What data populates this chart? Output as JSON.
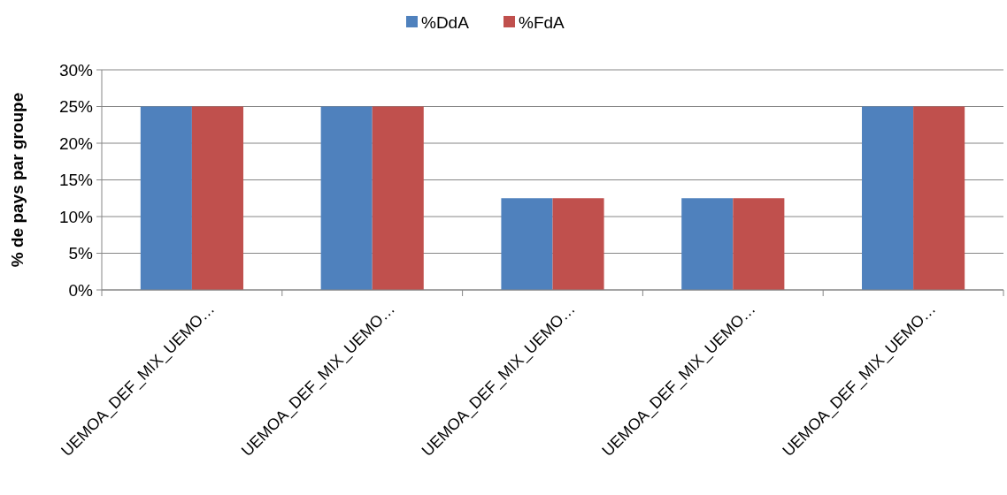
{
  "chart_data": {
    "type": "bar",
    "ylabel": "% de pays par groupe",
    "categories": [
      "UEMOA_DEF_MIX_UEMO…",
      "UEMOA_DEF_MIX_UEMO…",
      "UEMOA_DEF_MIX_UEMO…",
      "UEMOA_DEF_MIX_UEMO…",
      "UEMOA_DEF_MIX_UEMO…"
    ],
    "series": [
      {
        "name": "%DdA",
        "color": "#4f81bd",
        "values": [
          25,
          25,
          12.5,
          12.5,
          25
        ]
      },
      {
        "name": "%FdA",
        "color": "#c0504d",
        "values": [
          25,
          25,
          12.5,
          12.5,
          25
        ]
      }
    ],
    "ylim": [
      0,
      30
    ],
    "yticks": [
      {
        "value": 0,
        "label": "0%"
      },
      {
        "value": 5,
        "label": "5%"
      },
      {
        "value": 10,
        "label": "10%"
      },
      {
        "value": 15,
        "label": "15%"
      },
      {
        "value": 20,
        "label": "20%"
      },
      {
        "value": 25,
        "label": "25%"
      },
      {
        "value": 30,
        "label": "30%"
      }
    ],
    "grid": "y",
    "legend": "top"
  }
}
